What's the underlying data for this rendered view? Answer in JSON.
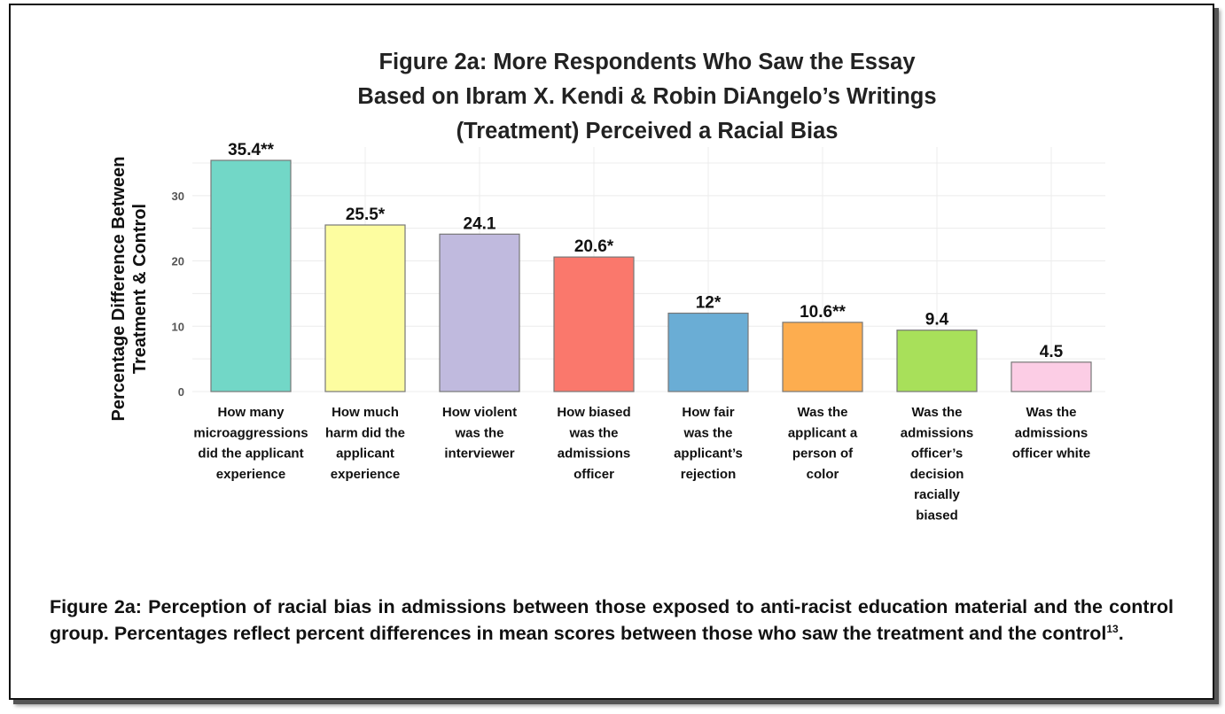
{
  "chart_data": {
    "type": "bar",
    "title_lines": [
      "Figure 2a: More Respondents Who Saw the Essay",
      "Based on Ibram X. Kendi & Robin DiAngelo’s Writings",
      "(Treatment) Perceived a Racial Bias"
    ],
    "ylabel_lines": [
      "Percentage Difference Between",
      "Treatment & Control"
    ],
    "xlabel": "",
    "ylim": [
      0,
      36
    ],
    "yticks": [
      0,
      10,
      20,
      30
    ],
    "grid": true,
    "legend": "none",
    "categories": [
      [
        "How many",
        "microaggressions",
        "did the applicant",
        "experience"
      ],
      [
        "How much",
        "harm did the",
        "applicant",
        "experience"
      ],
      [
        "How violent",
        "was the",
        "interviewer"
      ],
      [
        "How biased",
        "was the",
        "admissions",
        "officer"
      ],
      [
        "How fair",
        "was the",
        "applicant’s",
        "rejection"
      ],
      [
        "Was the",
        "applicant a",
        "person of",
        "color"
      ],
      [
        "Was the",
        "admissions",
        "officer’s",
        "decision",
        "racially",
        "biased"
      ],
      [
        "Was the",
        "admissions",
        "officer white"
      ]
    ],
    "values": [
      35.4,
      25.5,
      24.1,
      20.6,
      12,
      10.6,
      9.4,
      4.5
    ],
    "data_labels": [
      "35.4**",
      "25.5*",
      "24.1",
      "20.6*",
      "12*",
      "10.6**",
      "9.4",
      "4.5"
    ],
    "colors": [
      "#72d7c7",
      "#fdfda0",
      "#c0bade",
      "#fa786c",
      "#6aadd5",
      "#fdad4f",
      "#a8e05a",
      "#fccde5"
    ],
    "bar_edge_color": "#777777"
  },
  "caption": {
    "text": "Figure 2a: Perception of racial bias in admissions between those exposed to anti-racist education material and the control group. Percentages reflect percent differences in mean scores between those who saw the treatment and the control",
    "footnote": "13",
    "end": "."
  }
}
